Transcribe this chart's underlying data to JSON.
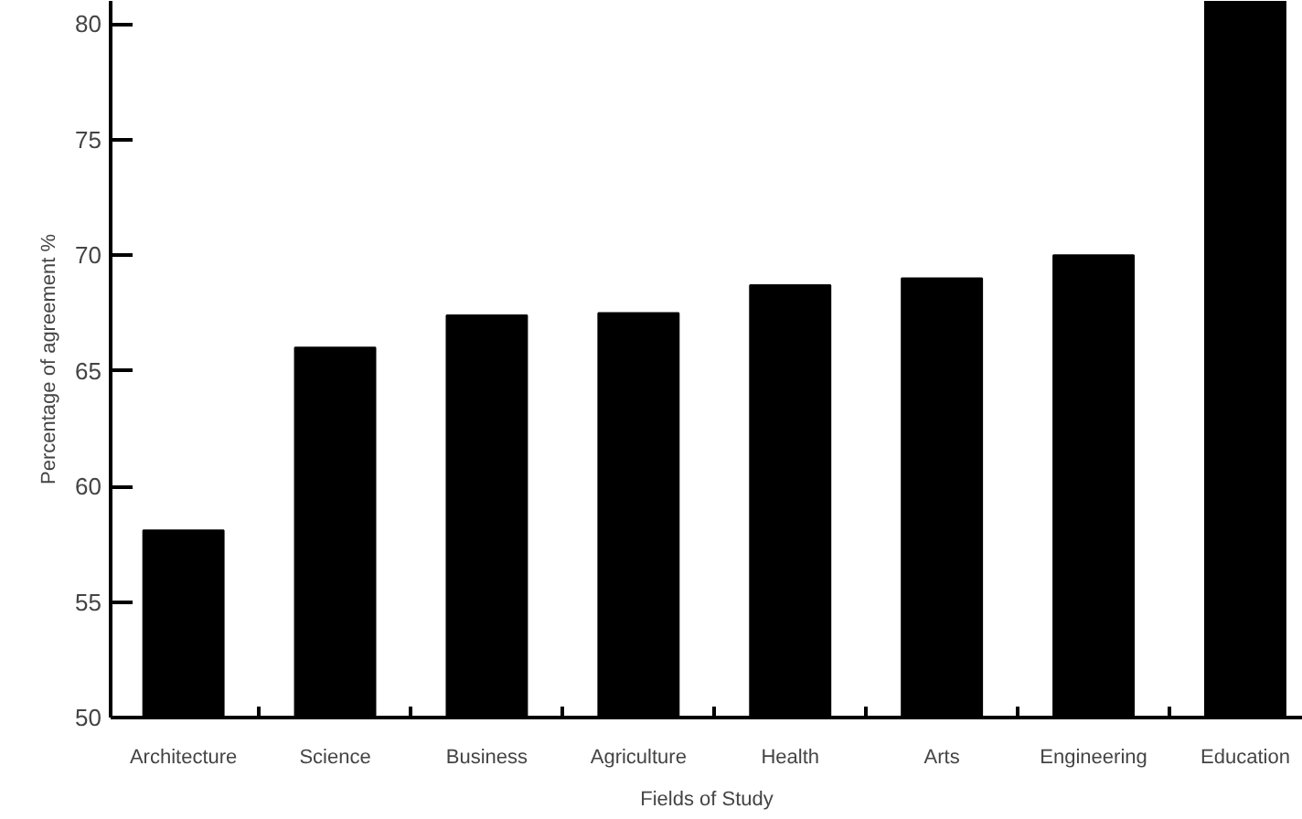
{
  "chart_data": {
    "type": "bar",
    "xlabel": "Fields of Study",
    "ylabel": "Percentage of agreement %",
    "categories": [
      "Architecture",
      "Science",
      "Business",
      "Agriculture",
      "Health",
      "Arts",
      "Engineering",
      "Education"
    ],
    "values": [
      58.1,
      66.0,
      67.4,
      67.5,
      68.7,
      69.0,
      70.0,
      81
    ],
    "color": "#000000",
    "ylim": [
      50,
      81
    ],
    "yticks": [
      50,
      55,
      60,
      65,
      70,
      75,
      80
    ],
    "grid": false
  }
}
